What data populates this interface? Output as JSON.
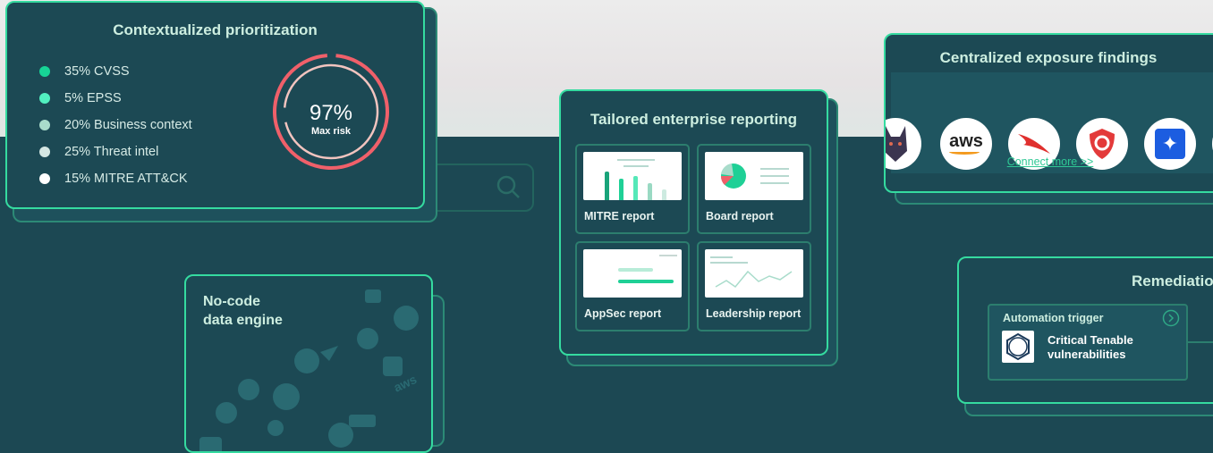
{
  "prioritization": {
    "title": "Contextualized prioritization",
    "factors": [
      {
        "label": "35% CVSS",
        "color": "#17d496"
      },
      {
        "label": "5% EPSS",
        "color": "#52f0c0"
      },
      {
        "label": "20% Business context",
        "color": "#a9dccb"
      },
      {
        "label": "25% Threat intel",
        "color": "#d4e6e2"
      },
      {
        "label": "15% MITRE ATT&CK",
        "color": "#ffffff"
      }
    ],
    "risk_value": "97%",
    "risk_label": "Max risk",
    "risk_percent": 97
  },
  "data_engine": {
    "title_line1": "No-code",
    "title_line2": "data engine"
  },
  "reporting": {
    "title": "Tailored enterprise reporting",
    "reports": [
      "MITRE report",
      "Board report",
      "AppSec report",
      "Leadership report"
    ]
  },
  "exposure": {
    "title": "Centralized exposure findings",
    "integrations": [
      "doberman-logo",
      "aws-logo",
      "crowdstrike-logo",
      "qualys-logo",
      "jira-logo"
    ],
    "aws_text": "aws",
    "connect_more": "Connect more >>"
  },
  "remediation": {
    "title": "Remediation",
    "trigger_label": "Automation trigger",
    "trigger_line1": "Critical Tenable",
    "trigger_line2": "vulnerabilities"
  },
  "colors": {
    "accent": "#35dba0",
    "card": "#1c4954",
    "risk": "#f0606a"
  }
}
